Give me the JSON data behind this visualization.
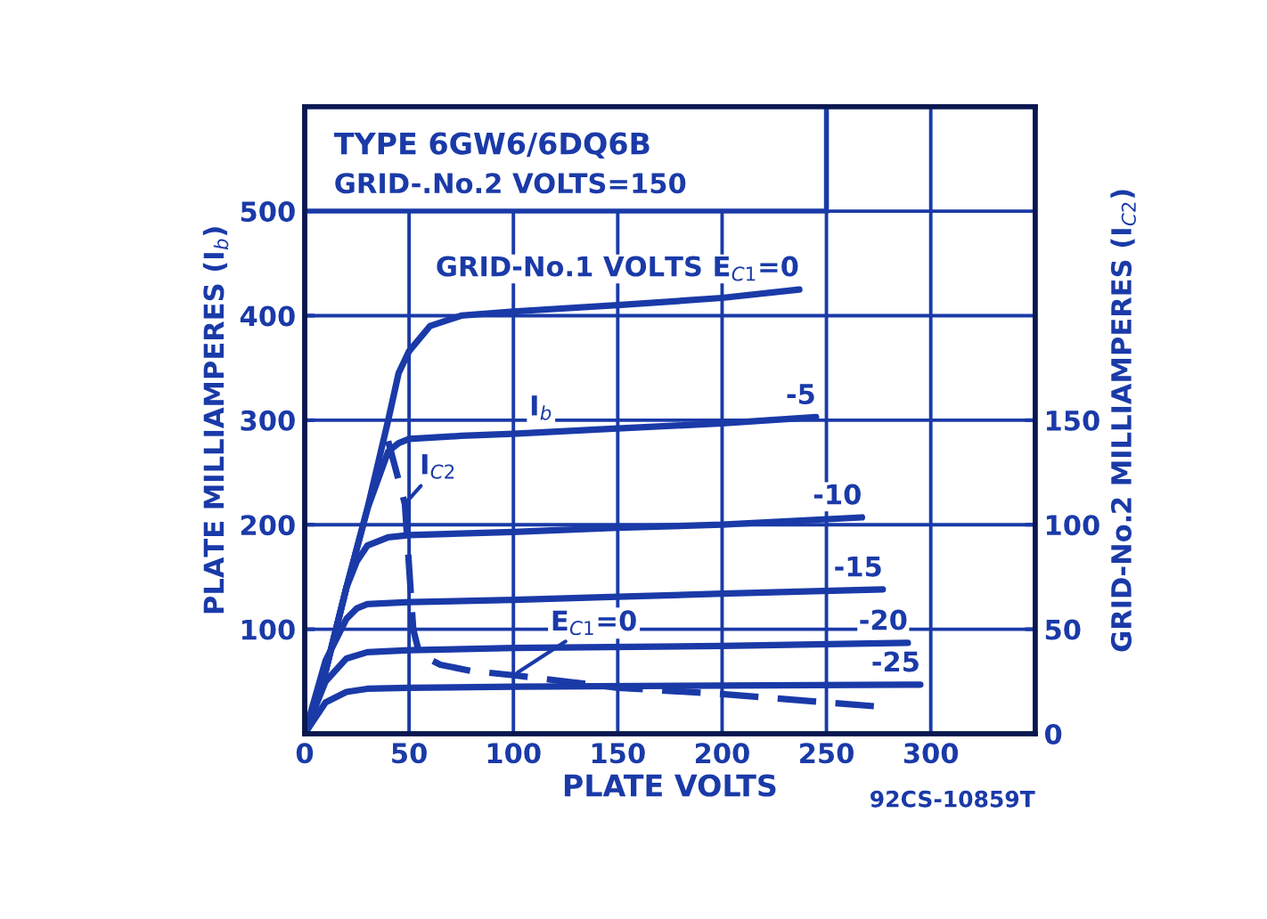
{
  "chart_data": {
    "type": "line",
    "title": "TYPE 6GW6/6DQ6B",
    "subtitle": "GRID-.No.2 VOLTS=150",
    "xlabel": "PLATE VOLTS",
    "ylabel": "PLATE MILLIAMPERES (I$_{b}$)",
    "y2label": "GRID-No.2 MILLIAMPERES (I$_{C2}$)",
    "xlim": [
      0,
      350
    ],
    "xticks": [
      0,
      50,
      100,
      150,
      200,
      250,
      300
    ],
    "ylim": [
      0,
      600
    ],
    "yticks": [
      100,
      200,
      300,
      400,
      500
    ],
    "y2lim": [
      0,
      300
    ],
    "y2ticks": [
      0,
      50,
      100,
      150
    ],
    "grid": true,
    "marker": "none",
    "line_style": "solid",
    "series": [
      {
        "name": "GRID-No.1 VOLTS E$_{C1}$=0",
        "color": "#1a3aa8",
        "x": [
          0,
          10,
          20,
          30,
          40,
          45,
          50,
          60,
          75,
          100,
          150,
          200,
          237
        ],
        "values": [
          0,
          60,
          140,
          215,
          300,
          345,
          366,
          390,
          400,
          404,
          410,
          417,
          425
        ]
      },
      {
        "name": "-5",
        "color": "#1a3aa8",
        "x": [
          0,
          10,
          20,
          30,
          40,
          45,
          50,
          75,
          100,
          150,
          200,
          245
        ],
        "values": [
          0,
          60,
          140,
          215,
          270,
          278,
          282,
          285,
          287,
          292,
          297,
          303
        ]
      },
      {
        "name": "-10",
        "color": "#1a3aa8",
        "x": [
          0,
          10,
          20,
          25,
          30,
          40,
          50,
          100,
          150,
          200,
          267
        ],
        "values": [
          0,
          60,
          140,
          165,
          180,
          188,
          190,
          193,
          197,
          200,
          207
        ]
      },
      {
        "name": "-15",
        "color": "#1a3aa8",
        "x": [
          0,
          10,
          20,
          25,
          30,
          50,
          100,
          150,
          200,
          277
        ],
        "values": [
          0,
          70,
          110,
          120,
          124,
          126,
          128,
          131,
          134,
          138
        ]
      },
      {
        "name": "-20",
        "color": "#1a3aa8",
        "x": [
          0,
          10,
          20,
          30,
          50,
          100,
          200,
          289
        ],
        "values": [
          0,
          50,
          72,
          78,
          80,
          82,
          84,
          87
        ]
      },
      {
        "name": "-25",
        "color": "#1a3aa8",
        "x": [
          0,
          10,
          20,
          30,
          50,
          100,
          200,
          295
        ],
        "values": [
          0,
          30,
          40,
          43,
          44,
          45,
          46,
          47
        ]
      },
      {
        "axis": "y2",
        "color": "#1a3aa8",
        "line_style": "dashed",
        "x": [
          40,
          48,
          50,
          52,
          55,
          65,
          80,
          100,
          150,
          200,
          250,
          275
        ],
        "values": [
          140,
          110,
          80,
          50,
          38,
          33,
          30,
          28,
          22,
          19,
          15,
          13
        ]
      }
    ],
    "annotations": [
      {
        "text": "I$_{b}$",
        "x": 110,
        "y": 288
      },
      {
        "text": "I$_{C2}$",
        "x": 48,
        "y": 220
      },
      {
        "text": "E$_{C1}$=0",
        "x": 100,
        "y": 56
      },
      "92CS-10859T"
    ]
  }
}
